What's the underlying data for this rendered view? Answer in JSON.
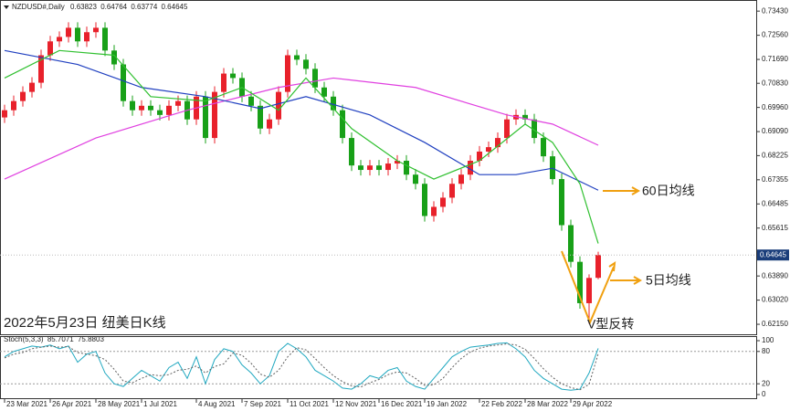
{
  "chart_data": {
    "type": "candlestick",
    "title": "NZDUSD#,Daily",
    "annotation": "2022年5月23日 纽美日K线",
    "annotations": [
      "60日均线",
      "5日均线",
      "V型反转"
    ],
    "up_color": "#e8212b",
    "down_color": "#18a018",
    "ylim": [
      0.6179,
      0.7383
    ],
    "yticks": [
      {
        "value": 0.7343,
        "label": "0.73430"
      },
      {
        "value": 0.7256,
        "label": "0.72560"
      },
      {
        "value": 0.7169,
        "label": "0.71690"
      },
      {
        "value": 0.7083,
        "label": "0.70830"
      },
      {
        "value": 0.6996,
        "label": "0.69960"
      },
      {
        "value": 0.6909,
        "label": "0.69090"
      },
      0.68225,
      0.67355,
      0.66485,
      0.65615,
      {
        "value": 0.6389,
        "label": "0.63890"
      },
      {
        "value": 0.6302,
        "label": "0.63020"
      },
      {
        "value": 0.6215,
        "label": "0.62150"
      }
    ],
    "xlim": [
      -0.5,
      82.3
    ],
    "xticks": [
      {
        "value": 0,
        "label": "23 Mar 2021"
      },
      {
        "value": 5,
        "label": "26 Apr 2021"
      },
      {
        "value": 10,
        "label": "28 May 2021"
      },
      {
        "value": 15,
        "label": "1 Jul 2021"
      },
      {
        "value": 21,
        "label": "4 Aug 2021"
      },
      {
        "value": 26,
        "label": "7 Sep 2021"
      },
      {
        "value": 31,
        "label": "11 Oct 2021"
      },
      {
        "value": 36,
        "label": "12 Nov 2021"
      },
      {
        "value": 41,
        "label": "16 Dec 2021"
      },
      {
        "value": 46,
        "label": "19 Jan 2022"
      },
      {
        "value": 52,
        "label": "22 Feb 2022"
      },
      {
        "value": 57,
        "label": "28 Mar 2022"
      },
      {
        "value": 62,
        "label": "29 Apr 2022"
      }
    ],
    "candles": {
      "open": [
        0.696,
        0.6986,
        0.7019,
        0.7052,
        0.7085,
        0.7184,
        0.7234,
        0.725,
        0.7283,
        0.7234,
        0.7267,
        0.7283,
        0.7201,
        0.7151,
        0.7019,
        0.6986,
        0.7002,
        0.6986,
        0.6969,
        0.7002,
        0.7019,
        0.6953,
        0.7035,
        0.6886,
        0.7052,
        0.7118,
        0.7102,
        0.7035,
        0.7002,
        0.692,
        0.6953,
        0.7052,
        0.7184,
        0.7168,
        0.7135,
        0.7068,
        0.7035,
        0.6986,
        0.6886,
        0.6787,
        0.6771,
        0.6787,
        0.6771,
        0.6794,
        0.6804,
        0.6754,
        0.6721,
        0.6605,
        0.6638,
        0.6671,
        0.6721,
        0.6754,
        0.6804,
        0.6837,
        0.6853,
        0.6886,
        0.6953,
        0.6969,
        0.6953,
        0.6886,
        0.682,
        0.6738,
        0.6572,
        0.644,
        0.6291,
        0.63823
      ],
      "high": [
        0.7006,
        0.7039,
        0.7072,
        0.7105,
        0.7204,
        0.7254,
        0.727,
        0.7303,
        0.7303,
        0.7287,
        0.7303,
        0.7303,
        0.7221,
        0.7171,
        0.7039,
        0.7022,
        0.7022,
        0.7006,
        0.7022,
        0.7039,
        0.7039,
        0.7055,
        0.7055,
        0.7072,
        0.7138,
        0.7138,
        0.7122,
        0.7055,
        0.7022,
        0.6973,
        0.7072,
        0.7204,
        0.7204,
        0.7188,
        0.7155,
        0.7088,
        0.7055,
        0.7006,
        0.6906,
        0.6807,
        0.6807,
        0.6807,
        0.6814,
        0.6824,
        0.6824,
        0.6774,
        0.6741,
        0.6658,
        0.6691,
        0.6741,
        0.6774,
        0.6824,
        0.6857,
        0.6873,
        0.6906,
        0.6973,
        0.6989,
        0.6989,
        0.6973,
        0.6906,
        0.684,
        0.6758,
        0.6592,
        0.646,
        0.6395,
        0.64764
      ],
      "low": [
        0.694,
        0.6966,
        0.6999,
        0.7032,
        0.7065,
        0.7164,
        0.7214,
        0.723,
        0.7214,
        0.7214,
        0.7247,
        0.7181,
        0.7131,
        0.6999,
        0.6966,
        0.6966,
        0.6966,
        0.6949,
        0.6949,
        0.6982,
        0.6933,
        0.6933,
        0.6866,
        0.6866,
        0.7032,
        0.7082,
        0.7015,
        0.6982,
        0.69,
        0.69,
        0.6933,
        0.7032,
        0.7148,
        0.7115,
        0.7048,
        0.7015,
        0.6966,
        0.6866,
        0.6767,
        0.6751,
        0.6751,
        0.6751,
        0.6751,
        0.6774,
        0.6734,
        0.6701,
        0.6585,
        0.6585,
        0.6618,
        0.6651,
        0.6701,
        0.6734,
        0.6784,
        0.6817,
        0.6833,
        0.6866,
        0.6933,
        0.6933,
        0.6866,
        0.68,
        0.6718,
        0.6552,
        0.642,
        0.6271,
        0.6217,
        0.63774
      ],
      "close": [
        0.6986,
        0.7019,
        0.7052,
        0.7085,
        0.7184,
        0.7234,
        0.725,
        0.7283,
        0.7234,
        0.7267,
        0.7283,
        0.7201,
        0.7151,
        0.7019,
        0.6986,
        0.7002,
        0.6986,
        0.6969,
        0.7002,
        0.7019,
        0.6953,
        0.7035,
        0.6886,
        0.7052,
        0.7118,
        0.7102,
        0.7035,
        0.7002,
        0.692,
        0.6953,
        0.7052,
        0.7184,
        0.7168,
        0.7135,
        0.7068,
        0.7035,
        0.6986,
        0.6886,
        0.6787,
        0.6771,
        0.6787,
        0.6771,
        0.6794,
        0.6804,
        0.6754,
        0.6721,
        0.6605,
        0.6638,
        0.6671,
        0.6721,
        0.6754,
        0.6804,
        0.6837,
        0.6853,
        0.6886,
        0.6953,
        0.6969,
        0.6953,
        0.6886,
        0.682,
        0.6738,
        0.6572,
        0.644,
        0.6291,
        0.6382,
        0.64645
      ]
    },
    "moving_averages": [
      {
        "color": "#e040e0",
        "x": [
          0,
          10,
          20,
          30,
          36,
          45,
          55,
          60,
          65
        ],
        "values": [
          0.6738,
          0.6886,
          0.6986,
          0.7068,
          0.7102,
          0.7068,
          0.6969,
          0.6936,
          0.686
        ]
      },
      {
        "color": "#2040c0",
        "x": [
          0,
          8,
          15,
          22,
          28,
          33,
          40,
          46,
          52,
          56,
          60,
          65
        ],
        "values": [
          0.7201,
          0.7151,
          0.7068,
          0.7035,
          0.6992,
          0.7035,
          0.6969,
          0.687,
          0.6754,
          0.6754,
          0.6777,
          0.6698
        ]
      },
      {
        "color": "#30c030",
        "x": [
          0,
          6,
          12,
          16,
          22,
          26,
          30,
          33,
          38,
          43,
          47,
          52,
          57,
          60,
          63,
          65
        ],
        "values": [
          0.7102,
          0.7201,
          0.7184,
          0.7035,
          0.7019,
          0.7068,
          0.6986,
          0.7102,
          0.692,
          0.6804,
          0.6738,
          0.6804,
          0.6936,
          0.687,
          0.6721,
          0.6506
        ]
      }
    ],
    "stoch": {
      "title": "Stoch(5,3,3)",
      "k_color": "#20a8c0",
      "d_color": "#606060",
      "ylim": [
        0,
        100
      ],
      "yticks": [
        0,
        20,
        80,
        100
      ],
      "k": [
        70,
        80,
        85,
        90,
        88,
        92,
        85,
        90,
        60,
        75,
        80,
        40,
        20,
        15,
        30,
        45,
        35,
        25,
        50,
        60,
        30,
        70,
        20,
        65,
        85,
        80,
        55,
        40,
        20,
        35,
        80,
        95,
        85,
        70,
        45,
        35,
        25,
        12,
        10,
        20,
        35,
        30,
        45,
        50,
        25,
        15,
        10,
        30,
        50,
        70,
        80,
        88,
        90,
        92,
        95,
        96,
        85,
        70,
        45,
        30,
        20,
        10,
        8,
        10,
        40,
        85.7071
      ],
      "d": [
        68,
        75,
        78,
        85,
        88,
        90,
        88,
        89,
        78,
        75,
        72,
        65,
        47,
        25,
        22,
        30,
        37,
        35,
        37,
        45,
        47,
        53,
        40,
        52,
        57,
        77,
        73,
        58,
        38,
        32,
        45,
        70,
        87,
        83,
        67,
        50,
        35,
        24,
        16,
        14,
        22,
        28,
        37,
        42,
        40,
        30,
        17,
        18,
        30,
        50,
        67,
        79,
        86,
        90,
        92,
        94,
        92,
        84,
        67,
        48,
        32,
        20,
        13,
        9,
        19,
        75.8803
      ]
    }
  }
}
